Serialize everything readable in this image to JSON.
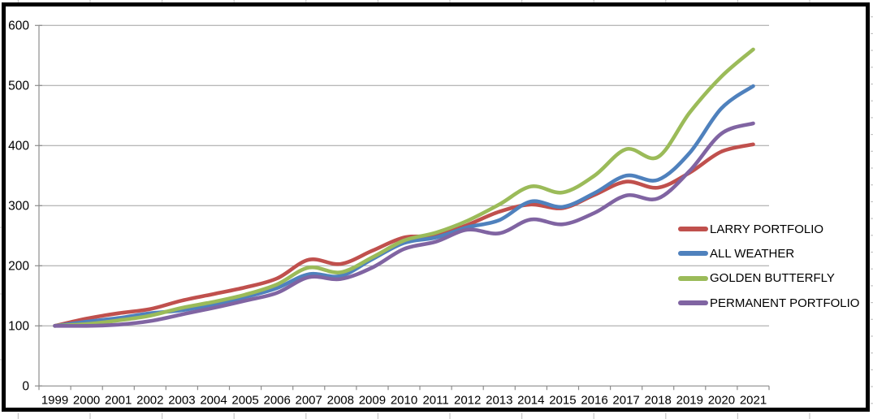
{
  "chart_data": {
    "type": "line",
    "title": "",
    "xlabel": "",
    "ylabel": "",
    "smoothed": true,
    "grid": "horizontal",
    "legend_position": "inside-right",
    "x": [
      1999,
      2000,
      2001,
      2002,
      2003,
      2004,
      2005,
      2006,
      2007,
      2008,
      2009,
      2010,
      2011,
      2012,
      2013,
      2014,
      2015,
      2016,
      2017,
      2018,
      2019,
      2020,
      2021
    ],
    "ylim": [
      0,
      600
    ],
    "ytick_interval": 100,
    "series": [
      {
        "name": "LARRY PORTFOLIO",
        "color": "#C0504D",
        "values": [
          100,
          112,
          121,
          128,
          142,
          153,
          164,
          179,
          210,
          203,
          225,
          247,
          250,
          268,
          290,
          302,
          296,
          318,
          340,
          330,
          355,
          390,
          402
        ]
      },
      {
        "name": "ALL WEATHER",
        "color": "#4F81BD",
        "values": [
          100,
          107,
          113,
          121,
          126,
          136,
          148,
          163,
          186,
          183,
          211,
          238,
          247,
          264,
          276,
          307,
          298,
          321,
          350,
          343,
          388,
          462,
          499
        ]
      },
      {
        "name": "GOLDEN BUTTERFLY",
        "color": "#9BBB59",
        "values": [
          100,
          103,
          109,
          117,
          130,
          140,
          152,
          169,
          197,
          189,
          214,
          242,
          255,
          275,
          302,
          332,
          322,
          350,
          394,
          381,
          455,
          515,
          560
        ]
      },
      {
        "name": "PERMANENT PORTFOLIO",
        "color": "#8064A2",
        "values": [
          100,
          100,
          102,
          108,
          119,
          130,
          142,
          155,
          181,
          178,
          197,
          228,
          240,
          260,
          254,
          277,
          269,
          288,
          317,
          312,
          358,
          420,
          437
        ]
      }
    ]
  },
  "colors": {
    "background": "#ffffff",
    "gridline": "#a0a0a0",
    "axis": "#8c8c8c",
    "tick": "#8c8c8c",
    "label_text": "#000000",
    "chart_border": "#000000",
    "margin_stub": "#c6c6c6"
  }
}
